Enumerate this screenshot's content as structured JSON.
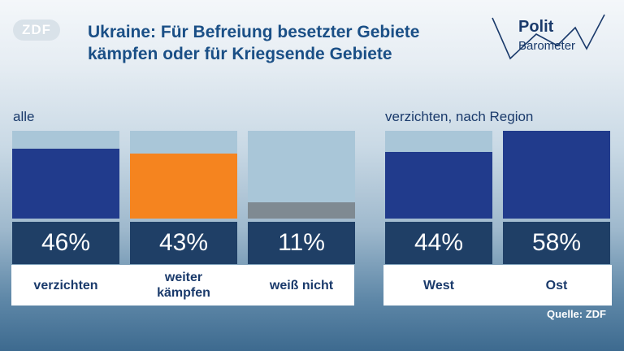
{
  "logo": "ZDF",
  "title_line1": "Ukraine: Für Befreiung besetzter Gebiete",
  "title_line2": "kämpfen oder für Kriegsende Gebiete",
  "brand": {
    "polit": "Polit",
    "barometer": "Barometer"
  },
  "source": "Quelle: ZDF",
  "colors": {
    "navy": "#213b8c",
    "orange": "#f5841f",
    "gray": "#7f8a92",
    "track": "#a9c6d8"
  },
  "chart_data": [
    {
      "type": "bar",
      "label": "alle",
      "categories": [
        "verzichten",
        "weiter kämpfen",
        "weiß nicht"
      ],
      "values": [
        46,
        43,
        11
      ],
      "value_labels": [
        "46%",
        "43%",
        "11%"
      ],
      "colors": [
        "#213b8c",
        "#f5841f",
        "#7f8a92"
      ],
      "ylim": [
        0,
        58
      ]
    },
    {
      "type": "bar",
      "label": "verzichten, nach Region",
      "categories": [
        "West",
        "Ost"
      ],
      "values": [
        44,
        58
      ],
      "value_labels": [
        "44%",
        "58%"
      ],
      "colors": [
        "#213b8c",
        "#213b8c"
      ],
      "ylim": [
        0,
        58
      ]
    }
  ]
}
